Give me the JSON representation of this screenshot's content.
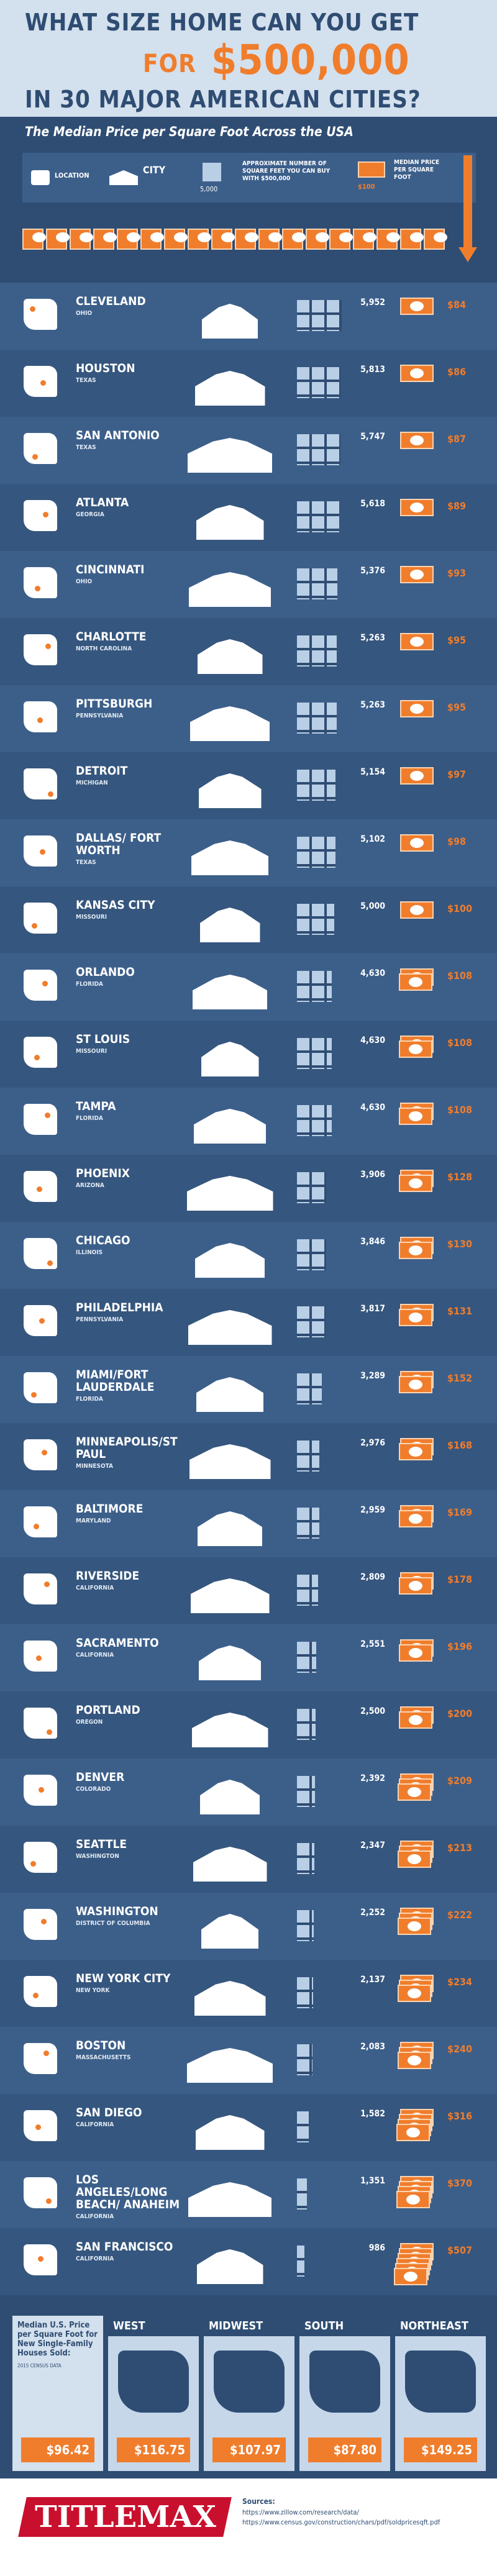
{
  "header": {
    "title_line1": "WHAT SIZE HOME CAN YOU GET",
    "title_for": "FOR",
    "title_amount": "$500,000",
    "title_line3": "IN 30 MAJOR AMERICAN CITIES?",
    "subtitle": "The Median Price per Square Foot Across the USA"
  },
  "legend": {
    "location": "LOCATION",
    "city": "CITY",
    "sqft_example": "5,000",
    "sqft_text": "APPROXIMATE NUMBER OF SQUARE FEET YOU CAN BUY WITH $500,000",
    "price_example": "$100",
    "price_text": "MEDIAN PRICE PER SQUARE FOOT"
  },
  "cities": [
    {
      "name": "CLEVELAND",
      "state": "OHIO",
      "sqft": 5952,
      "sqft_label": "5,952",
      "price": 84,
      "price_label": "$84"
    },
    {
      "name": "HOUSTON",
      "state": "TEXAS",
      "sqft": 5813,
      "sqft_label": "5,813",
      "price": 86,
      "price_label": "$86"
    },
    {
      "name": "SAN ANTONIO",
      "state": "TEXAS",
      "sqft": 5747,
      "sqft_label": "5,747",
      "price": 87,
      "price_label": "$87"
    },
    {
      "name": "ATLANTA",
      "state": "GEORGIA",
      "sqft": 5618,
      "sqft_label": "5,618",
      "price": 89,
      "price_label": "$89"
    },
    {
      "name": "CINCINNATI",
      "state": "OHIO",
      "sqft": 5376,
      "sqft_label": "5,376",
      "price": 93,
      "price_label": "$93"
    },
    {
      "name": "CHARLOTTE",
      "state": "NORTH CAROLINA",
      "sqft": 5263,
      "sqft_label": "5,263",
      "price": 95,
      "price_label": "$95"
    },
    {
      "name": "PITTSBURGH",
      "state": "PENNSYLVANIA",
      "sqft": 5263,
      "sqft_label": "5,263",
      "price": 95,
      "price_label": "$95"
    },
    {
      "name": "DETROIT",
      "state": "MICHIGAN",
      "sqft": 5154,
      "sqft_label": "5,154",
      "price": 97,
      "price_label": "$97"
    },
    {
      "name": "DALLAS/ FORT WORTH",
      "state": "TEXAS",
      "sqft": 5102,
      "sqft_label": "5,102",
      "price": 98,
      "price_label": "$98"
    },
    {
      "name": "KANSAS CITY",
      "state": "MISSOURI",
      "sqft": 5000,
      "sqft_label": "5,000",
      "price": 100,
      "price_label": "$100"
    },
    {
      "name": "ORLANDO",
      "state": "FLORIDA",
      "sqft": 4630,
      "sqft_label": "4,630",
      "price": 108,
      "price_label": "$108"
    },
    {
      "name": "ST LOUIS",
      "state": "MISSOURI",
      "sqft": 4630,
      "sqft_label": "4,630",
      "price": 108,
      "price_label": "$108"
    },
    {
      "name": "TAMPA",
      "state": "FLORIDA",
      "sqft": 4630,
      "sqft_label": "4,630",
      "price": 108,
      "price_label": "$108"
    },
    {
      "name": "PHOENIX",
      "state": "ARIZONA",
      "sqft": 3906,
      "sqft_label": "3,906",
      "price": 128,
      "price_label": "$128"
    },
    {
      "name": "CHICAGO",
      "state": "ILLINOIS",
      "sqft": 3846,
      "sqft_label": "3,846",
      "price": 130,
      "price_label": "$130"
    },
    {
      "name": "PHILADELPHIA",
      "state": "PENNSYLVANIA",
      "sqft": 3817,
      "sqft_label": "3,817",
      "price": 131,
      "price_label": "$131"
    },
    {
      "name": "MIAMI/FORT LAUDERDALE",
      "state": "FLORIDA",
      "sqft": 3289,
      "sqft_label": "3,289",
      "price": 152,
      "price_label": "$152"
    },
    {
      "name": "MINNEAPOLIS/ST PAUL",
      "state": "MINNESOTA",
      "sqft": 2976,
      "sqft_label": "2,976",
      "price": 168,
      "price_label": "$168"
    },
    {
      "name": "BALTIMORE",
      "state": "MARYLAND",
      "sqft": 2959,
      "sqft_label": "2,959",
      "price": 169,
      "price_label": "$169"
    },
    {
      "name": "RIVERSIDE",
      "state": "CALIFORNIA",
      "sqft": 2809,
      "sqft_label": "2,809",
      "price": 178,
      "price_label": "$178"
    },
    {
      "name": "SACRAMENTO",
      "state": "CALIFORNIA",
      "sqft": 2551,
      "sqft_label": "2,551",
      "price": 196,
      "price_label": "$196"
    },
    {
      "name": "PORTLAND",
      "state": "OREGON",
      "sqft": 2500,
      "sqft_label": "2,500",
      "price": 200,
      "price_label": "$200"
    },
    {
      "name": "DENVER",
      "state": "COLORADO",
      "sqft": 2392,
      "sqft_label": "2,392",
      "price": 209,
      "price_label": "$209"
    },
    {
      "name": "SEATTLE",
      "state": "WASHINGTON",
      "sqft": 2347,
      "sqft_label": "2,347",
      "price": 213,
      "price_label": "$213"
    },
    {
      "name": "WASHINGTON",
      "state": "DISTRICT OF COLUMBIA",
      "sqft": 2252,
      "sqft_label": "2,252",
      "price": 222,
      "price_label": "$222"
    },
    {
      "name": "NEW YORK CITY",
      "state": "NEW YORK",
      "sqft": 2137,
      "sqft_label": "2,137",
      "price": 234,
      "price_label": "$234"
    },
    {
      "name": "BOSTON",
      "state": "MASSACHUSETTS",
      "sqft": 2083,
      "sqft_label": "2,083",
      "price": 240,
      "price_label": "$240"
    },
    {
      "name": "SAN DIEGO",
      "state": "CALIFORNIA",
      "sqft": 1582,
      "sqft_label": "1,582",
      "price": 316,
      "price_label": "$316"
    },
    {
      "name": "LOS ANGELES/LONG BEACH/ ANAHEIM",
      "state": "CALIFORNIA",
      "sqft": 1351,
      "sqft_label": "1,351",
      "price": 370,
      "price_label": "$370"
    },
    {
      "name": "SAN FRANCISCO",
      "state": "CALIFORNIA",
      "sqft": 986,
      "sqft_label": "986",
      "price": 507,
      "price_label": "$507"
    }
  ],
  "regions": {
    "note": "Median U.S. Price per Square Foot for New Single-Family Houses Sold:",
    "source_note": "2015 CENSUS DATA",
    "us_price": "$96.42",
    "items": [
      {
        "name": "WEST",
        "price": "$116.75"
      },
      {
        "name": "MIDWEST",
        "price": "$107.97"
      },
      {
        "name": "SOUTH",
        "price": "$87.80"
      },
      {
        "name": "NORTHEAST",
        "price": "$149.25"
      }
    ]
  },
  "footer": {
    "brand": "TITLEMAX",
    "sources_label": "Sources:",
    "sources": [
      "https://www.zillow.com/research/data/",
      "https://www.census.gov/construction/chars/pdf/soldpricesqft.pdf"
    ]
  }
}
